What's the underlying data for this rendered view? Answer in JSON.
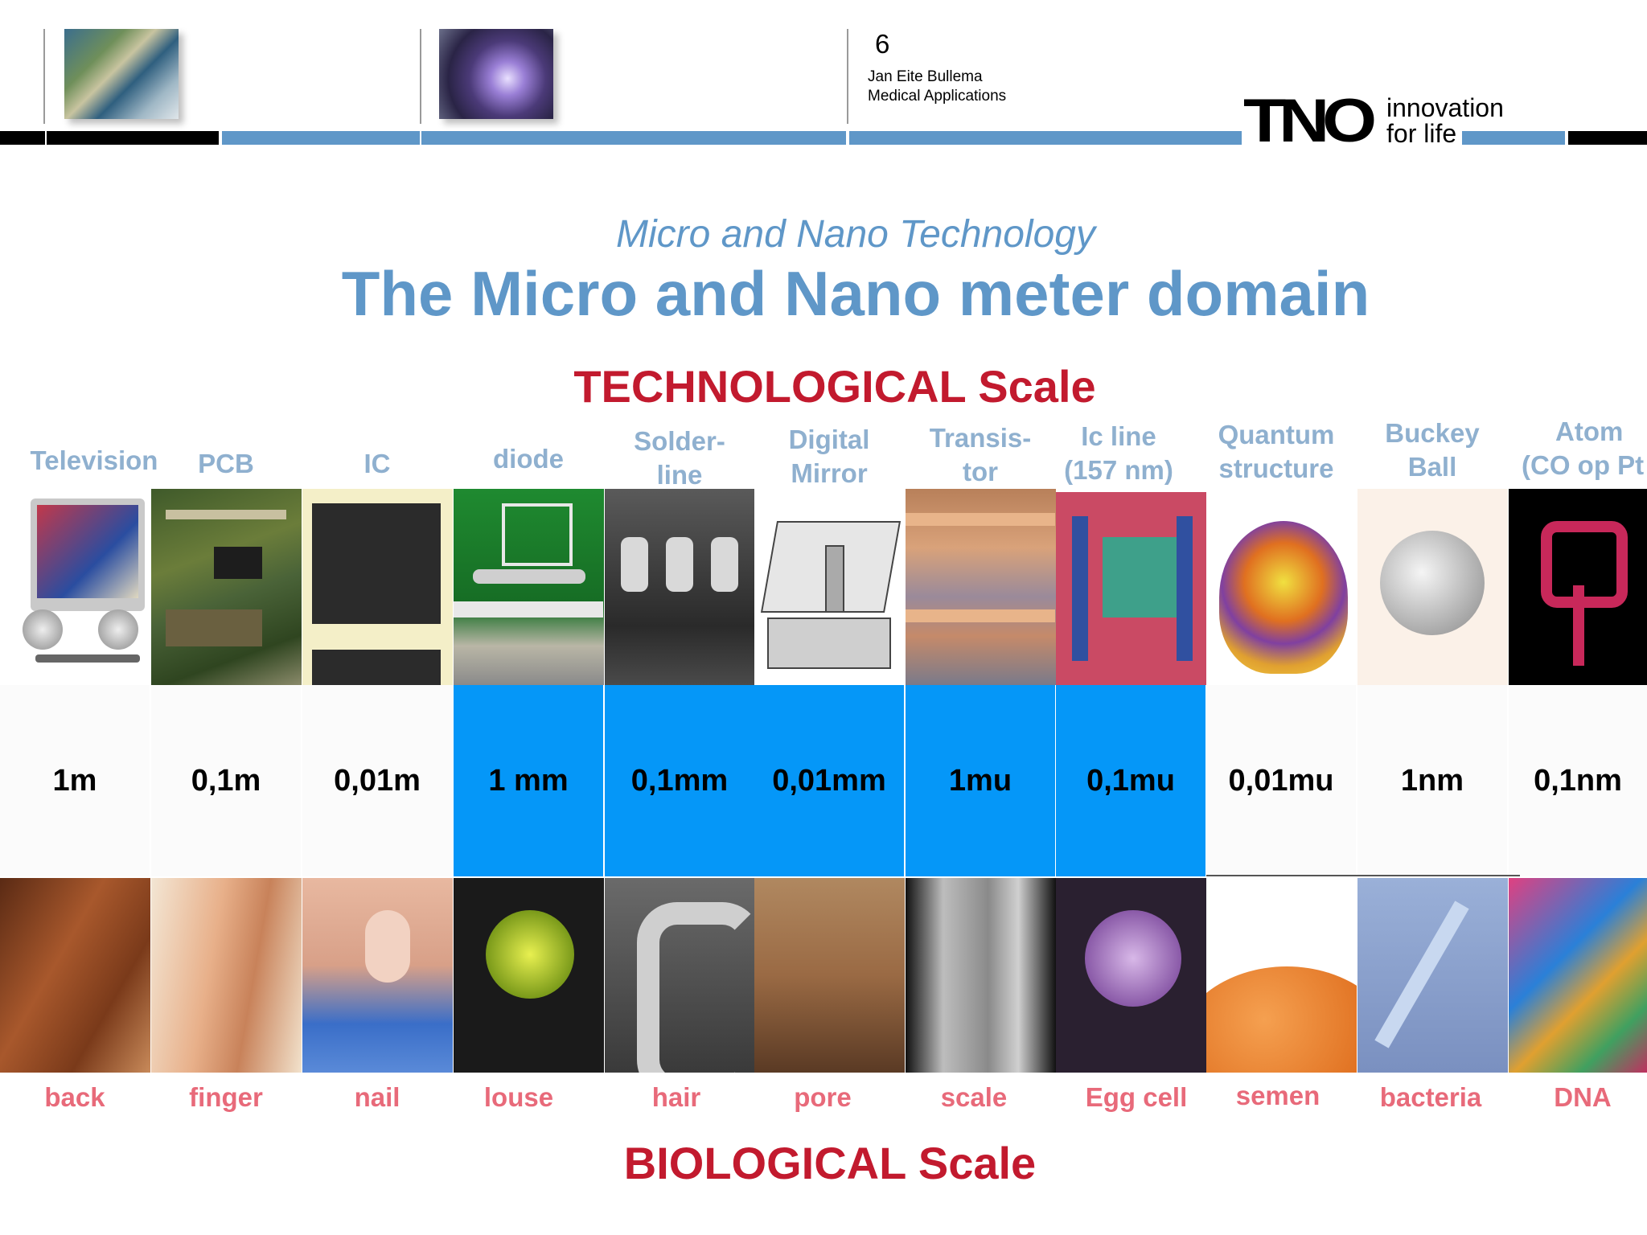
{
  "header": {
    "page_number": "6",
    "author": "Jan Eite Bullema",
    "department": "Medical Applications",
    "logo_text": "TNO",
    "logo_line1": "innovation",
    "logo_line2": "for life",
    "thumb_left_icon": "satellite-earth-image",
    "thumb_mid_icon": "plasma-image"
  },
  "subtitle": "Micro and Nano Technology",
  "title": "The Micro and Nano meter domain",
  "tech_scale_label": "TECHNOLOGICAL Scale",
  "bio_scale_label": "BIOLOGICAL Scale",
  "columns": [
    {
      "tech_line1": "Television",
      "tech_line2": "",
      "scale": "1m",
      "bio": "back"
    },
    {
      "tech_line1": "PCB",
      "tech_line2": "",
      "scale": "0,1m",
      "bio": "finger"
    },
    {
      "tech_line1": "IC",
      "tech_line2": "",
      "scale": "0,01m",
      "bio": "nail"
    },
    {
      "tech_line1": "diode",
      "tech_line2": "",
      "scale": "1 mm",
      "bio": "louse"
    },
    {
      "tech_line1": "Solder-",
      "tech_line2": "line",
      "scale": "0,1mm",
      "bio": "hair"
    },
    {
      "tech_line1": "Digital",
      "tech_line2": "Mirror",
      "scale": "0,01mm",
      "bio": "pore"
    },
    {
      "tech_line1": "Transis-",
      "tech_line2": "tor",
      "scale": "1mu",
      "bio": "scale"
    },
    {
      "tech_line1": "Ic line",
      "tech_line2": "(157 nm)",
      "scale": "0,1mu",
      "bio": "Egg cell"
    },
    {
      "tech_line1": "Quantum",
      "tech_line2": "structure",
      "scale": "0,01mu",
      "bio": "semen"
    },
    {
      "tech_line1": "Buckey",
      "tech_line2": "Ball",
      "scale": "1nm",
      "bio": "bacteria"
    },
    {
      "tech_line1": "Atom",
      "tech_line2": "(CO op Pt",
      "scale": "0,1nm",
      "bio": "DNA"
    }
  ],
  "highlight_color": "#0597f8",
  "title_color": "#5f97c8",
  "scale_label_color": "#c21a2e",
  "bio_label_color": "#e86a7a"
}
